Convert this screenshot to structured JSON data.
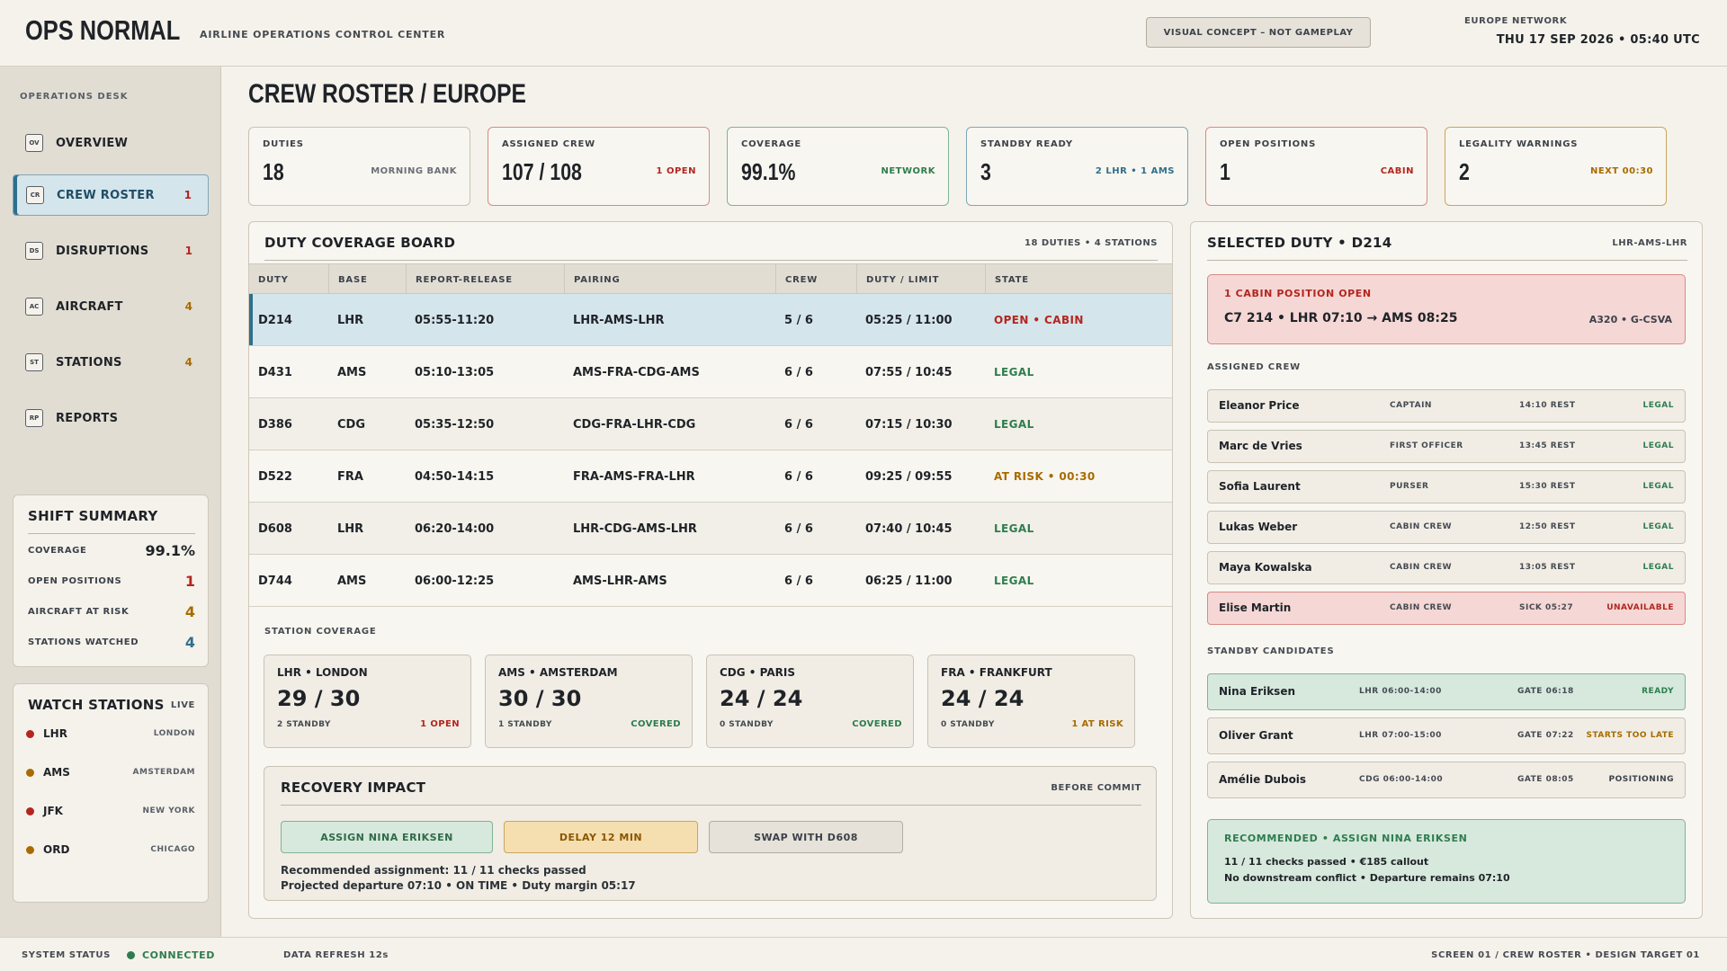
{
  "header": {
    "brand": "OPS NORMAL",
    "subtitle": "AIRLINE OPERATIONS CONTROL CENTER",
    "concept_badge": "VISUAL CONCEPT – NOT GAMEPLAY",
    "network": "EUROPE NETWORK",
    "datetime": "THU 17 SEP 2026  •  05:40 UTC"
  },
  "sidebar": {
    "section_label": "OPERATIONS DESK",
    "items": [
      {
        "code": "OV",
        "label": "OVERVIEW",
        "count": ""
      },
      {
        "code": "CR",
        "label": "CREW ROSTER",
        "count": "1"
      },
      {
        "code": "DS",
        "label": "DISRUPTIONS",
        "count": "1"
      },
      {
        "code": "AC",
        "label": "AIRCRAFT",
        "count": "4"
      },
      {
        "code": "ST",
        "label": "STATIONS",
        "count": "4"
      },
      {
        "code": "RP",
        "label": "REPORTS",
        "count": ""
      }
    ],
    "shift_summary": {
      "title": "SHIFT SUMMARY",
      "rows": [
        {
          "label": "COVERAGE",
          "value": "99.1%"
        },
        {
          "label": "OPEN POSITIONS",
          "value": "1"
        },
        {
          "label": "AIRCRAFT AT RISK",
          "value": "4"
        },
        {
          "label": "STATIONS WATCHED",
          "value": "4"
        }
      ]
    },
    "watch_stations": {
      "title": "WATCH STATIONS",
      "live": "LIVE",
      "rows": [
        {
          "code": "LHR",
          "city": "LONDON"
        },
        {
          "code": "AMS",
          "city": "AMSTERDAM"
        },
        {
          "code": "JFK",
          "city": "NEW YORK"
        },
        {
          "code": "ORD",
          "city": "CHICAGO"
        }
      ]
    }
  },
  "page_title": "CREW ROSTER / EUROPE",
  "kpis": [
    {
      "label": "DUTIES",
      "value": "18",
      "note": "MORNING BANK"
    },
    {
      "label": "ASSIGNED CREW",
      "value": "107 / 108",
      "note": "1 OPEN"
    },
    {
      "label": "COVERAGE",
      "value": "99.1%",
      "note": "NETWORK"
    },
    {
      "label": "STANDBY READY",
      "value": "3",
      "note": "2 LHR • 1 AMS"
    },
    {
      "label": "OPEN POSITIONS",
      "value": "1",
      "note": "CABIN"
    },
    {
      "label": "LEGALITY WARNINGS",
      "value": "2",
      "note": "NEXT 00:30"
    }
  ],
  "board": {
    "title": "DUTY COVERAGE BOARD",
    "meta": "18 DUTIES  •  4 STATIONS",
    "columns": [
      "DUTY",
      "BASE",
      "REPORT-RELEASE",
      "PAIRING",
      "CREW",
      "DUTY / LIMIT",
      "STATE"
    ],
    "rows": [
      {
        "duty": "D214",
        "base": "LHR",
        "time": "05:55-11:20",
        "pairing": "LHR-AMS-LHR",
        "crew": "5 / 6",
        "limit": "05:25 / 11:00",
        "state": "OPEN • CABIN"
      },
      {
        "duty": "D431",
        "base": "AMS",
        "time": "05:10-13:05",
        "pairing": "AMS-FRA-CDG-AMS",
        "crew": "6 / 6",
        "limit": "07:55 / 10:45",
        "state": "LEGAL"
      },
      {
        "duty": "D386",
        "base": "CDG",
        "time": "05:35-12:50",
        "pairing": "CDG-FRA-LHR-CDG",
        "crew": "6 / 6",
        "limit": "07:15 / 10:30",
        "state": "LEGAL"
      },
      {
        "duty": "D522",
        "base": "FRA",
        "time": "04:50-14:15",
        "pairing": "FRA-AMS-FRA-LHR",
        "crew": "6 / 6",
        "limit": "09:25 / 09:55",
        "state": "AT RISK • 00:30"
      },
      {
        "duty": "D608",
        "base": "LHR",
        "time": "06:20-14:00",
        "pairing": "LHR-CDG-AMS-LHR",
        "crew": "6 / 6",
        "limit": "07:40 / 10:45",
        "state": "LEGAL"
      },
      {
        "duty": "D744",
        "base": "AMS",
        "time": "06:00-12:25",
        "pairing": "AMS-LHR-AMS",
        "crew": "6 / 6",
        "limit": "06:25 / 11:00",
        "state": "LEGAL"
      }
    ],
    "station_title": "STATION COVERAGE",
    "stations": [
      {
        "name": "LHR • LONDON",
        "value": "29 / 30",
        "standby": "2 STANDBY",
        "status": "1 OPEN"
      },
      {
        "name": "AMS • AMSTERDAM",
        "value": "30 / 30",
        "standby": "1 STANDBY",
        "status": "COVERED"
      },
      {
        "name": "CDG • PARIS",
        "value": "24 / 24",
        "standby": "0 STANDBY",
        "status": "COVERED"
      },
      {
        "name": "FRA • FRANKFURT",
        "value": "24 / 24",
        "standby": "0 STANDBY",
        "status": "1 AT RISK"
      }
    ],
    "recovery": {
      "title": "RECOVERY IMPACT",
      "meta": "BEFORE COMMIT",
      "buttons": [
        "ASSIGN NINA ERIKSEN",
        "DELAY 12 MIN",
        "SWAP WITH D608"
      ],
      "line1": "Recommended assignment: 11 / 11 checks passed",
      "line2": "Projected departure 07:10 • ON TIME • Duty margin 05:17"
    }
  },
  "detail": {
    "title": "SELECTED DUTY • D214",
    "route": "LHR-AMS-LHR",
    "alert_title": "1 CABIN POSITION OPEN",
    "alert_flight": "C7 214 • LHR 07:10 → AMS 08:25",
    "alert_aircraft": "A320 • G-CSVA",
    "assigned_title": "ASSIGNED CREW",
    "crew": [
      {
        "name": "Eleanor Price",
        "role": "CAPTAIN",
        "rest": "14:10 REST",
        "status": "LEGAL"
      },
      {
        "name": "Marc de Vries",
        "role": "FIRST OFFICER",
        "rest": "13:45 REST",
        "status": "LEGAL"
      },
      {
        "name": "Sofia Laurent",
        "role": "PURSER",
        "rest": "15:30 REST",
        "status": "LEGAL"
      },
      {
        "name": "Lukas Weber",
        "role": "CABIN CREW",
        "rest": "12:50 REST",
        "status": "LEGAL"
      },
      {
        "name": "Maya Kowalska",
        "role": "CABIN CREW",
        "rest": "13:05 REST",
        "status": "LEGAL"
      },
      {
        "name": "Elise Martin",
        "role": "CABIN CREW",
        "rest": "SICK 05:27",
        "status": "UNAVAILABLE"
      }
    ],
    "standby_title": "STANDBY CANDIDATES",
    "standby": [
      {
        "name": "Nina Eriksen",
        "window": "LHR 06:00-14:00",
        "gate": "GATE 06:18",
        "status": "READY"
      },
      {
        "name": "Oliver Grant",
        "window": "LHR 07:00-15:00",
        "gate": "GATE 07:22",
        "status": "STARTS TOO LATE"
      },
      {
        "name": "Amélie Dubois",
        "window": "CDG 06:00-14:00",
        "gate": "GATE 08:05",
        "status": "POSITIONING"
      }
    ],
    "recommend_title": "RECOMMENDED • ASSIGN NINA ERIKSEN",
    "recommend_line1": "11 / 11 checks passed • €185 callout",
    "recommend_line2": "No downstream conflict • Departure remains 07:10"
  },
  "footer": {
    "status_label": "SYSTEM STATUS",
    "status_value": "CONNECTED",
    "refresh": "DATA REFRESH 12s",
    "screen": "SCREEN 01 / CREW ROSTER  •  DESIGN TARGET 01"
  },
  "colors": {
    "red": "#b3261e",
    "green": "#2e7d4f",
    "amber": "#a86b00",
    "blue": "#2f6f8d"
  }
}
